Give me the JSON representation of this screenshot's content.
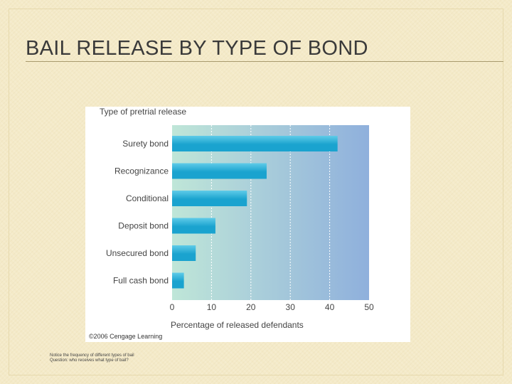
{
  "slide": {
    "title": "BAIL RELEASE BY TYPE OF BOND"
  },
  "chart_data": {
    "type": "bar",
    "orientation": "horizontal",
    "title": "Type of pretrial release",
    "xlabel": "Percentage of released defendants",
    "categories": [
      "Surety bond",
      "Recognizance",
      "Conditional",
      "Deposit bond",
      "Unsecured bond",
      "Full cash bond"
    ],
    "values": [
      42,
      24,
      19,
      11,
      6,
      3
    ],
    "xlim": [
      0,
      50
    ],
    "xticks": [
      "0",
      "10",
      "20",
      "30",
      "40",
      "50"
    ],
    "grid": "vertical dashed",
    "credit": "©2006 Cengage Learning",
    "colors": {
      "bar": "#1aa3cf",
      "bar_highlight": "#5fcbe8",
      "plot_bg_left": "#bfe6d8",
      "plot_bg_right": "#8fb0dc"
    }
  },
  "notes": [
    "Notice the frequency of different types of bail",
    "Question: who receives what type of bail?"
  ]
}
